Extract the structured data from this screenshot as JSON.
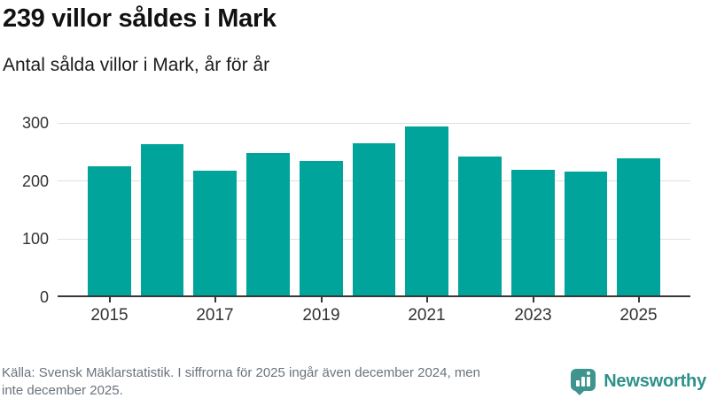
{
  "chart_data": {
    "type": "bar",
    "title": "239 villor såldes i Mark",
    "subtitle": "Antal sålda villor i Mark, år för år",
    "categories": [
      "2015",
      "2016",
      "2017",
      "2018",
      "2019",
      "2020",
      "2021",
      "2022",
      "2023",
      "2024",
      "2025"
    ],
    "values": [
      225,
      264,
      218,
      249,
      234,
      265,
      294,
      242,
      220,
      216,
      239
    ],
    "xlabel": "",
    "ylabel": "",
    "ylim": [
      0,
      300
    ],
    "yticks": [
      0,
      100,
      200,
      300
    ],
    "x_tick_labels": [
      "2015",
      "2017",
      "2019",
      "2021",
      "2023",
      "2025"
    ],
    "grid": "horizontal",
    "legend": "none",
    "bar_color": "#00a49a"
  },
  "footer": {
    "source": "Källa: Svensk Mäklarstatistik. I siffrorna för 2025 ingår även december 2024, men\ninte december 2025.",
    "brand": "Newsworthy"
  },
  "colors": {
    "bar": "#00a49a",
    "axis": "#383838",
    "grid": "#e0e0e0",
    "tick_text": "#333333",
    "title_text": "#111111",
    "source_text": "#6a737d",
    "brand_teal": "#2d918b",
    "logo_bubble": "#3f948e"
  }
}
